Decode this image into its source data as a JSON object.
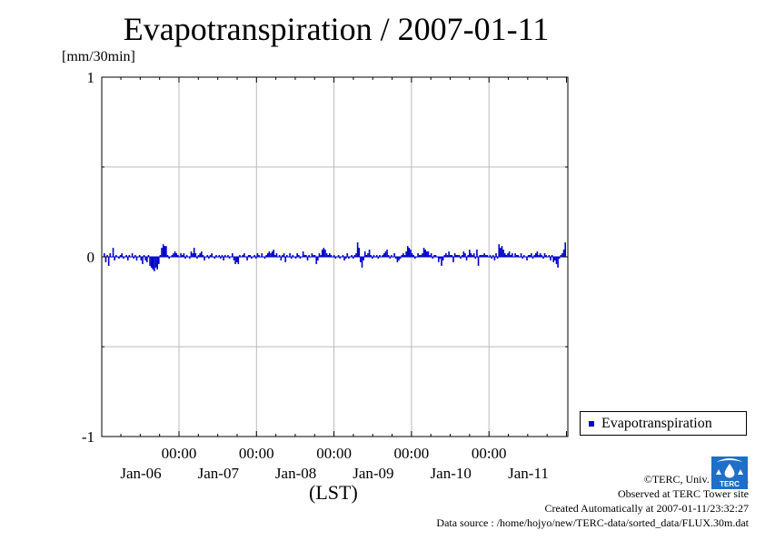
{
  "title": "Evapotranspiration / 2007-01-11",
  "unit_label": "[mm/30min]",
  "xaxis_caption": "(LST)",
  "legend": {
    "label": "Evapotranspiration"
  },
  "credits": {
    "copyright": "©TERC, Univ. Tsukuba",
    "site": "Observed at TERC Tower site",
    "created": "Created Automatically at 2007-01-11/23:32:27",
    "source": "Data source : /home/hojyo/new/TERC-data/sorted_data/FLUX.30m.dat"
  },
  "logo": {
    "icon": "terc-logo-icon",
    "text": "TERC"
  },
  "colors": {
    "series": "#0000cc",
    "grid": "#bbbbbb",
    "axis": "#000000",
    "logo": "#1e6fc8"
  },
  "chart_data": {
    "type": "bar",
    "title": "Evapotranspiration / 2007-01-11",
    "ylabel": "[mm/30min]",
    "xlabel": "(LST)",
    "ylim": [
      -1,
      1
    ],
    "yticks": [
      "-1",
      "0",
      "1"
    ],
    "xticks": [
      {
        "time": "00:00",
        "date": "Jan-06"
      },
      {
        "time": "00:00",
        "date": "Jan-07"
      },
      {
        "time": "00:00",
        "date": "Jan-08"
      },
      {
        "time": "00:00",
        "date": "Jan-09"
      },
      {
        "time": "00:00",
        "date": "Jan-10"
      },
      {
        "time": "00:00",
        "date": "Jan-11"
      }
    ],
    "grid": true,
    "legend_position": "bottom-right outside",
    "series": [
      {
        "name": "Evapotranspiration",
        "values": [
          0.02,
          -0.03,
          0.01,
          -0.05,
          0.02,
          0,
          0.05,
          -0.02,
          0.01,
          0,
          -0.01,
          0.01,
          0.02,
          -0.01,
          0,
          0.01,
          -0.02,
          0.01,
          0,
          0.02,
          -0.01,
          0.01,
          -0.02,
          0,
          0.01,
          -0.02,
          -0.04,
          0.01,
          -0.02,
          -0.03,
          0.01,
          -0.05,
          -0.06,
          -0.07,
          -0.08,
          -0.06,
          -0.07,
          -0.04,
          0.01,
          0.05,
          0.07,
          0.06,
          0.06,
          0.01,
          -0.01,
          0,
          0.01,
          0.02,
          0.03,
          0.02,
          0.01,
          0,
          0.02,
          0.01,
          0.02,
          -0.01,
          0.01,
          0,
          -0.01,
          0.03,
          0.02,
          0.05,
          0.02,
          -0.01,
          0.01,
          0.02,
          0.03,
          0.01,
          -0.02,
          0,
          0.01,
          -0.01,
          0.01,
          0.02,
          0,
          -0.01,
          0.01,
          0,
          0.01,
          -0.01,
          0.01,
          -0.02,
          0.01,
          0,
          0.01,
          -0.01,
          0,
          0.02,
          -0.02,
          -0.04,
          -0.03,
          -0.04,
          0.01,
          0,
          0.01,
          0.02,
          0,
          -0.02,
          0.01,
          0.01,
          -0.01,
          0,
          0.01,
          -0.01,
          0.02,
          0.01,
          0,
          0.02,
          0,
          -0.01,
          0.01,
          0.02,
          0.03,
          0.02,
          0.03,
          0.04,
          0.01,
          0.02,
          0,
          0.01,
          -0.02,
          0.01,
          0.02,
          -0.03,
          0.01,
          0,
          0.02,
          -0.01,
          0.01,
          0,
          -0.01,
          0.02,
          0.01,
          -0.01,
          0,
          0.03,
          0.01,
          0.01,
          -0.02,
          0.01,
          0,
          0.02,
          0.01,
          0.01,
          -0.04,
          -0.02,
          0.02,
          0.01,
          0.04,
          0.05,
          0.04,
          0.02,
          0.01,
          0.02,
          0.01,
          0,
          0.01,
          -0.01,
          0,
          0.01,
          -0.01,
          0,
          0.01,
          -0.02,
          -0.01,
          0.02,
          -0.01,
          0,
          0.01,
          -0.01,
          0.01,
          0.02,
          0.08,
          0.05,
          -0.03,
          -0.06,
          -0.02,
          0.03,
          0.01,
          0.02,
          0.04,
          0.01,
          -0.01,
          0.01,
          0,
          0.01,
          -0.01,
          0.01,
          0,
          0.01,
          0.02,
          0.03,
          0.04,
          0.01,
          -0.01,
          0.01,
          0,
          0.02,
          -0.01,
          -0.03,
          -0.02,
          -0.01,
          0.01,
          0.02,
          0.01,
          0.03,
          0.06,
          0.05,
          0.04,
          0.02,
          0.01,
          -0.01,
          0,
          0.02,
          0.01,
          0.01,
          0.02,
          0.05,
          0.04,
          0.03,
          0.03,
          0.01,
          0.02,
          -0.01,
          0.01,
          0.01,
          0,
          -0.03,
          -0.01,
          -0.05,
          -0.02,
          0.01,
          0.02,
          0.01,
          0.03,
          0.01,
          0.01,
          -0.03,
          0.02,
          0.01,
          0.01,
          0.01,
          -0.01,
          0.01,
          0.03,
          0.02,
          -0.02,
          0.01,
          0.04,
          0.02,
          0.01,
          0.02,
          -0.01,
          0.04,
          -0.05,
          0.01,
          0.01,
          0.01,
          0.02,
          0.01,
          0.01,
          0,
          0.01,
          -0.01,
          0.01,
          -0.02,
          0.02,
          -0.01,
          0.07,
          0.05,
          0.06,
          0.04,
          0.02,
          0.01,
          0.02,
          0.03,
          0.01,
          0.02,
          0,
          0.02,
          0.01,
          0.01,
          0,
          0.02,
          -0.01,
          0.01,
          0,
          -0.02,
          0.01,
          0.01,
          0.02,
          -0.01,
          0.01,
          0.02,
          0.03,
          0.01,
          0.02,
          0.01,
          -0.01,
          0.02,
          0.01,
          0,
          0.01,
          -0.02,
          0.01,
          -0.03,
          -0.02,
          -0.04,
          -0.06,
          -0.01,
          0.01,
          0.02,
          0.04,
          0.08
        ]
      }
    ]
  }
}
